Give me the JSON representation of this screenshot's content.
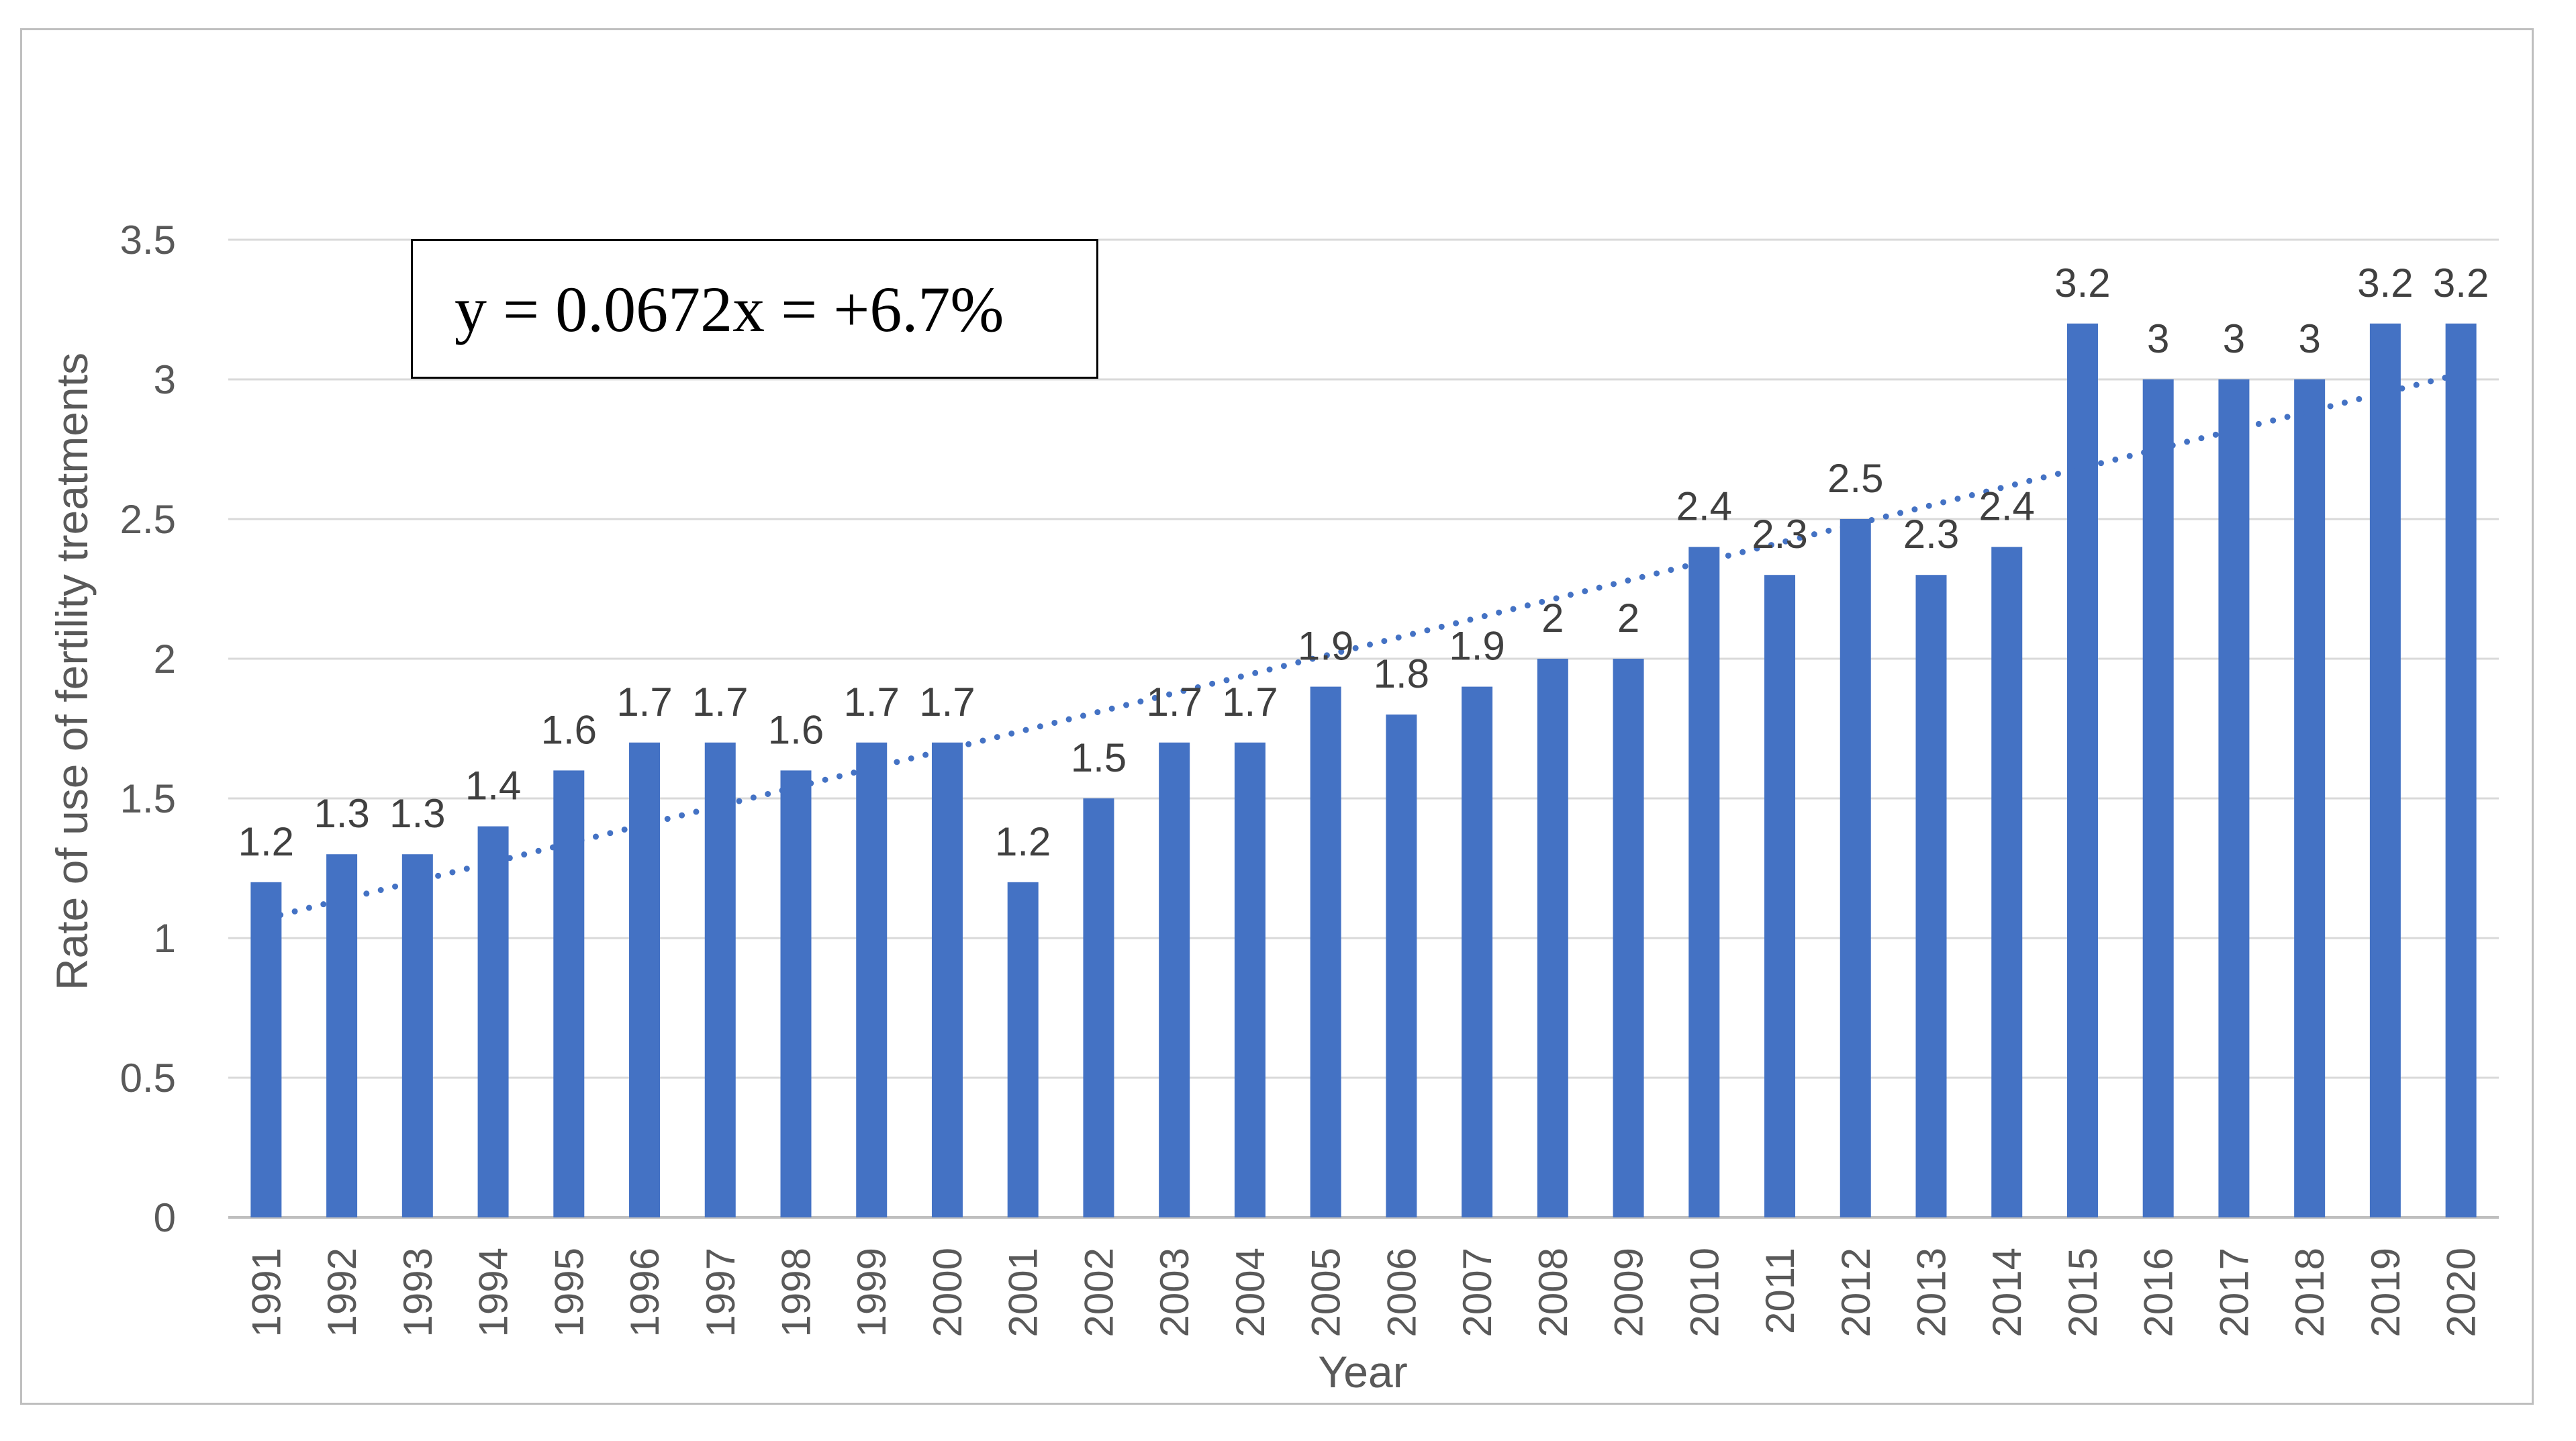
{
  "chart_data": {
    "type": "bar",
    "title": "",
    "xlabel": "Year",
    "ylabel": "Rate of use of fertility treatments",
    "ylim": [
      0,
      3.5
    ],
    "yticks": [
      "0",
      "0.5",
      "1",
      "1.5",
      "2",
      "2.5",
      "3",
      "3.5"
    ],
    "categories": [
      "1991",
      "1992",
      "1993",
      "1994",
      "1995",
      "1996",
      "1997",
      "1998",
      "1999",
      "2000",
      "2001",
      "2002",
      "2003",
      "2004",
      "2005",
      "2006",
      "2007",
      "2008",
      "2009",
      "2010",
      "2011",
      "2012",
      "2013",
      "2014",
      "2015",
      "2016",
      "2017",
      "2018",
      "2019",
      "2020"
    ],
    "values": [
      1.2,
      1.3,
      1.3,
      1.4,
      1.6,
      1.7,
      1.7,
      1.6,
      1.7,
      1.7,
      1.2,
      1.5,
      1.7,
      1.7,
      1.9,
      1.8,
      1.9,
      2,
      2,
      2.4,
      2.3,
      2.5,
      2.3,
      2.4,
      3.2,
      3,
      3,
      3,
      3.2,
      3.2
    ],
    "data_labels": [
      "1.2",
      "1.3",
      "1.3",
      "1.4",
      "1.6",
      "1.7",
      "1.7",
      "1.6",
      "1.7",
      "1.7",
      "1.2",
      "1.5",
      "1.7",
      "1.7",
      "1.9",
      "1.8",
      "1.9",
      "2",
      "2",
      "2.4",
      "2.3",
      "2.5",
      "2.3",
      "2.4",
      "3.2",
      "3",
      "3",
      "3",
      "3.2",
      "3.2"
    ],
    "bar_color": "#4472C4",
    "trendline": {
      "type": "linear",
      "style": "dotted",
      "color": "#4472C4",
      "start_value": 1.07,
      "end_value": 3.02,
      "equation": "y = 0.0672x = +6.7%"
    },
    "grid": true,
    "legend": "none"
  }
}
